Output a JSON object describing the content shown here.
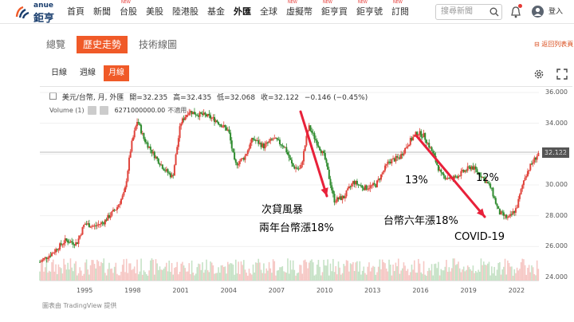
{
  "logo": {
    "en": "anue",
    "zh": "鉅亨"
  },
  "nav": [
    {
      "label": "首頁",
      "new": false
    },
    {
      "label": "新聞",
      "new": false
    },
    {
      "label": "台股",
      "new": true
    },
    {
      "label": "美股",
      "new": false
    },
    {
      "label": "陸港股",
      "new": false
    },
    {
      "label": "基金",
      "new": false
    },
    {
      "label": "外匯",
      "new": false,
      "active": true
    },
    {
      "label": "全球",
      "new": false
    },
    {
      "label": "虛擬幣",
      "new": true
    },
    {
      "label": "鉅亨買",
      "new": true
    },
    {
      "label": "鉅亨號",
      "new": true
    },
    {
      "label": "訂閱",
      "new": true
    }
  ],
  "nav_new_label": "NEW",
  "search": {
    "placeholder": "搜尋新聞"
  },
  "login_label": "登入",
  "tabs": [
    {
      "label": "總覽",
      "active": false
    },
    {
      "label": "歷史走勢",
      "active": true
    },
    {
      "label": "技術線圖",
      "active": false
    }
  ],
  "back_link": "返回列表頁",
  "subtabs": [
    {
      "label": "日線",
      "active": false
    },
    {
      "label": "週線",
      "active": false
    },
    {
      "label": "月線",
      "active": true
    }
  ],
  "ohlc": {
    "symbol": "美元/台幣, 月, 外匯",
    "open": "開=32.235",
    "high": "高=32.435",
    "low": "低=32.068",
    "close": "收=32.122",
    "change": "−0.146 (−0.45%)"
  },
  "volume": {
    "label": "Volume (1)",
    "value": "6271000000.00",
    "unit": "不適用"
  },
  "current_price": "32.122",
  "credit": "圖表由 TradingView 提供",
  "annotations": {
    "a1": "次貸風暴",
    "a2": "兩年台幣漲18%",
    "a3": "13%",
    "a4": "12%",
    "a5": "台幣六年漲18%",
    "a6": "COVID-19"
  },
  "colors": {
    "accent": "#f05a28",
    "up": "#e0443c",
    "down": "#2e8b2e",
    "arrow": "#e8213a"
  },
  "chart_data": {
    "type": "candlestick",
    "yticks": [
      "36.000",
      "34.000",
      "32.000",
      "30.000",
      "28.000",
      "26.000",
      "24.000"
    ],
    "ylim": [
      24,
      36
    ],
    "xticks": [
      "1995",
      "1998",
      "2001",
      "2004",
      "2007",
      "2010",
      "2013",
      "2016",
      "2019",
      "2022"
    ],
    "xlim": [
      1992.2,
      2023.4
    ],
    "series": [
      {
        "x": [
          1992.2,
          1993,
          1993.8,
          1994.5,
          1995,
          1995.6,
          1996.2,
          1997,
          1997.5,
          1997.9,
          1998.3,
          1998.7,
          1999.3,
          2000,
          2000.5,
          2001,
          2001.5,
          2002,
          2002.6,
          2003.2,
          2004,
          2004.4,
          2005,
          2005.5,
          2006.2,
          2006.8,
          2007.5,
          2008,
          2008.5,
          2009,
          2009.5,
          2010,
          2010.6,
          2011.2,
          2011.8,
          2012.5,
          2013.2,
          2014,
          2014.7,
          2015.3,
          2015.8,
          2016.2,
          2016.7,
          2017.3,
          2018,
          2018.6,
          2019.2,
          2019.8,
          2020.4,
          2020.9,
          2021.5,
          2022,
          2022.5,
          2022.9,
          2023.4
        ],
        "y": [
          25.0,
          25.6,
          26.4,
          26.2,
          27.5,
          27.3,
          27.6,
          28.5,
          29.5,
          32.5,
          34.2,
          33.0,
          32.0,
          31.0,
          30.5,
          34.0,
          34.8,
          34.6,
          34.5,
          34.2,
          33.5,
          31.3,
          31.8,
          33.0,
          32.5,
          33.0,
          32.5,
          31.2,
          31.0,
          33.8,
          32.8,
          31.8,
          29.0,
          29.2,
          30.2,
          29.8,
          30.0,
          31.5,
          31.8,
          32.8,
          33.4,
          33.2,
          32.2,
          30.6,
          30.4,
          30.8,
          31.2,
          30.6,
          29.8,
          28.2,
          27.8,
          28.5,
          30.5,
          31.3,
          32.1
        ]
      }
    ]
  }
}
